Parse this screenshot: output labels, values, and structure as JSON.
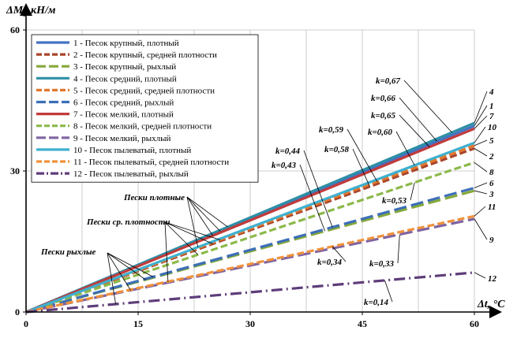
{
  "chart_data": {
    "type": "line",
    "ylabel": "ΔM",
    "ylabel_sub": "t",
    "ylabel_unit": ", кН/м",
    "xlabel": "Δt, °C",
    "xlim": [
      0,
      60
    ],
    "ylim": [
      0,
      60
    ],
    "x_ticks": [
      0,
      15,
      30,
      45,
      60
    ],
    "y_ticks": [
      0,
      30,
      60
    ],
    "x_tick_labels": [
      "0",
      "15",
      "30",
      "45",
      "60"
    ],
    "y_tick_labels": [
      "0",
      "30",
      "60"
    ],
    "grid": true,
    "legend_position": "top-left",
    "series": [
      {
        "name": "1 - Песок крупный, плотный",
        "label": "1",
        "k": 0.66,
        "color": "#4472c4",
        "style": "solid",
        "x": [
          0,
          60
        ],
        "y": [
          0,
          39.6
        ]
      },
      {
        "name": "2 - Песок крупный, средней плотности",
        "label": "2",
        "k": 0.58,
        "color": "#a9442a",
        "style": "dash",
        "x": [
          0,
          60
        ],
        "y": [
          0,
          34.8
        ]
      },
      {
        "name": "3 - Песок крупный, рыхлый",
        "label": "3",
        "k": 0.43,
        "color": "#86a83a",
        "style": "longdash",
        "x": [
          0,
          60
        ],
        "y": [
          0,
          25.8
        ]
      },
      {
        "name": "4 - Песок средний, плотный",
        "label": "4",
        "k": 0.67,
        "color": "#2e8fa6",
        "style": "solid",
        "x": [
          0,
          60
        ],
        "y": [
          0,
          40.2
        ]
      },
      {
        "name": "5 - Песок средний, средней плотности",
        "label": "5",
        "k": 0.59,
        "color": "#e2762c",
        "style": "dash",
        "x": [
          0,
          60
        ],
        "y": [
          0,
          35.4
        ]
      },
      {
        "name": "6 - Песок средний, рыхлый",
        "label": "6",
        "k": 0.44,
        "color": "#3c6fb7",
        "style": "longdash",
        "x": [
          0,
          60
        ],
        "y": [
          0,
          26.4
        ]
      },
      {
        "name": "7 - Песок мелкий, плотный",
        "label": "7",
        "k": 0.65,
        "color": "#c23b3b",
        "style": "solid",
        "x": [
          0,
          60
        ],
        "y": [
          0,
          39.0
        ]
      },
      {
        "name": "8 - Песок мелкий, средней плотности",
        "label": "8",
        "k": 0.53,
        "color": "#8cb94a",
        "style": "dash",
        "x": [
          0,
          60
        ],
        "y": [
          0,
          31.8
        ]
      },
      {
        "name": "9 - Песок мелкий, рыхлый",
        "label": "9",
        "k": 0.33,
        "color": "#8064a2",
        "style": "longdash",
        "x": [
          0,
          60
        ],
        "y": [
          0,
          19.8
        ]
      },
      {
        "name": "10 - Песок пылеватый, плотный",
        "label": "10",
        "k": 0.6,
        "color": "#3fb0cf",
        "style": "solid",
        "x": [
          0,
          60
        ],
        "y": [
          0,
          36.0
        ]
      },
      {
        "name": "11 - Песок пылеватый, средней плотности",
        "label": "11",
        "k": 0.34,
        "color": "#f0913a",
        "style": "dash",
        "x": [
          0,
          60
        ],
        "y": [
          0,
          20.4
        ]
      },
      {
        "name": "12 - Песок пылеватый, рыхлый",
        "label": "12",
        "k": 0.14,
        "color": "#5e3d7a",
        "style": "dashdot",
        "x": [
          0,
          60
        ],
        "y": [
          0,
          8.4
        ]
      }
    ],
    "k_labels": [
      "k=0,67",
      "k=0,66",
      "k=0,65",
      "k=0,60",
      "k=0,59",
      "k=0,58",
      "k=0,53",
      "k=0,44",
      "k=0,43",
      "k=0,34",
      "k=0,33",
      "k=0,14"
    ],
    "annotations": [
      "Пески плотные",
      "Пески ср. плотности",
      "Пески рыхлые"
    ]
  }
}
